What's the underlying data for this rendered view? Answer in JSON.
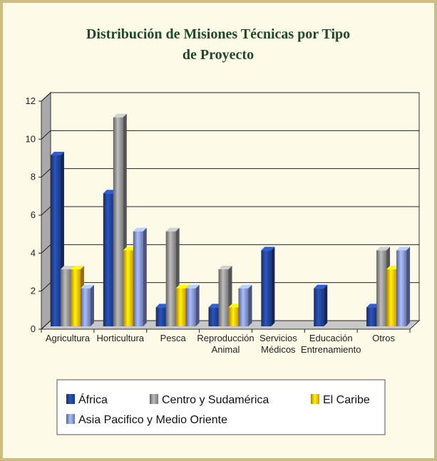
{
  "chart_data": {
    "type": "bar3d",
    "title": "Distribución de Misiones Técnicas por Tipo de Proyecto",
    "categories": [
      "Agricultura",
      "Horticultura",
      "Pesca",
      "Reproducción Animal",
      "Servicios Médicos",
      "Educación Entrenamiento",
      "Otros"
    ],
    "series": [
      {
        "name": "África",
        "color": "#1f3f8f",
        "values": [
          9,
          7,
          1,
          1,
          4,
          2,
          1
        ]
      },
      {
        "name": "Centro y Sudamérica",
        "color": "#8c8c8c",
        "values": [
          3,
          11,
          5,
          3,
          0,
          0,
          4
        ]
      },
      {
        "name": "El Caribe",
        "color": "#f7b500",
        "values": [
          3,
          4,
          2,
          1,
          0,
          0,
          3
        ]
      },
      {
        "name": "Asia Pacifico y Medio Oriente",
        "color": "#7d8ccb",
        "values": [
          2,
          5,
          2,
          2,
          0,
          0,
          4
        ]
      }
    ],
    "ylim": [
      0,
      12
    ],
    "yticks": [
      0,
      2,
      4,
      6,
      8,
      10,
      12
    ],
    "grid": true
  }
}
